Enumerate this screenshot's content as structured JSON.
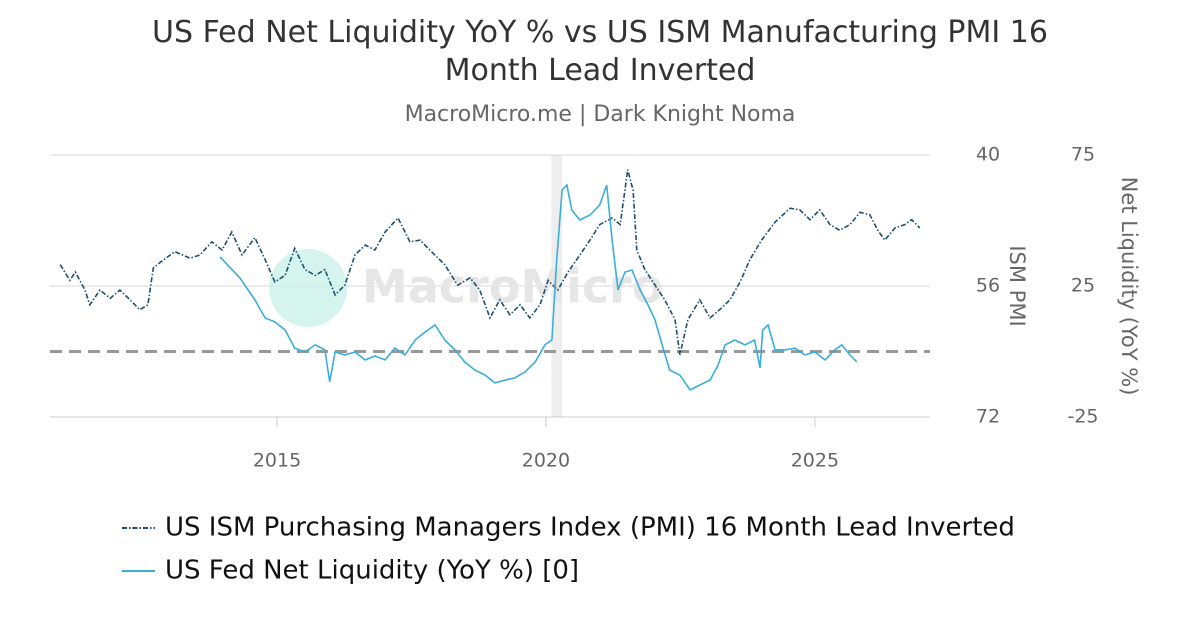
{
  "chart_data": {
    "type": "line",
    "title": "US Fed Net Liquidity YoY % vs US ISM Manufacturing PMI 16 Month Lead Inverted",
    "subtitle": "MacroMicro.me | Dark Knight Noma",
    "watermark": "MacroMicro",
    "y_label": "ISM PMI",
    "y2_label": "Net Liquidity (YoY %)",
    "xlim": [
      2010.78,
      2027.14
    ],
    "xticks": [
      2015,
      2020,
      2025
    ],
    "ylim": [
      72,
      40
    ],
    "yticks": [
      40,
      56,
      72
    ],
    "y2lim": [
      -25,
      75
    ],
    "y2ticks": [
      -25,
      25,
      75
    ],
    "grid": true,
    "reference_line": {
      "axis": "y2",
      "value": 0,
      "color": "#999999"
    },
    "shaded_regions": [
      {
        "from": 2020.1,
        "to": 2020.3,
        "color": "#eeeeee"
      }
    ],
    "legend": "bottom-left",
    "series": [
      {
        "name": "US ISM Purchasing Managers Index (PMI) 16 Month Lead Inverted",
        "color": "#1d4e6e",
        "dash": "dashdot",
        "axis": "y",
        "x": [
          2010.97,
          2011.15,
          2011.25,
          2011.43,
          2011.52,
          2011.71,
          2011.9,
          2012.08,
          2012.27,
          2012.45,
          2012.6,
          2012.7,
          2012.83,
          2013.1,
          2013.38,
          2013.57,
          2013.79,
          2013.98,
          2014.16,
          2014.35,
          2014.59,
          2014.78,
          2014.96,
          2015.15,
          2015.33,
          2015.52,
          2015.71,
          2015.89,
          2016.08,
          2016.26,
          2016.45,
          2016.64,
          2016.82,
          2017.01,
          2017.25,
          2017.47,
          2017.66,
          2017.84,
          2018.12,
          2018.36,
          2018.59,
          2018.77,
          2018.96,
          2019.14,
          2019.33,
          2019.52,
          2019.7,
          2019.89,
          2020.04,
          2020.22,
          2020.41,
          2020.59,
          2020.82,
          2021.0,
          2021.23,
          2021.38,
          2021.52,
          2021.62,
          2021.69,
          2021.84,
          2022.03,
          2022.21,
          2022.4,
          2022.49,
          2022.64,
          2022.86,
          2023.05,
          2023.23,
          2023.42,
          2023.61,
          2023.79,
          2024.01,
          2024.26,
          2024.54,
          2024.72,
          2024.91,
          2025.09,
          2025.28,
          2025.46,
          2025.65,
          2025.84,
          2026.02,
          2026.17,
          2026.3,
          2026.49,
          2026.67,
          2026.8,
          2026.95
        ],
        "values": [
          53.4,
          55.3,
          54.3,
          56.5,
          58.3,
          56.5,
          57.5,
          56.5,
          57.7,
          58.9,
          58.3,
          53.8,
          53.1,
          51.8,
          52.6,
          52.2,
          50.6,
          51.6,
          49.4,
          52.2,
          50.1,
          52.8,
          55.5,
          54.7,
          51.4,
          54.0,
          54.7,
          54.0,
          57.1,
          55.9,
          52.2,
          51.0,
          51.6,
          49.4,
          47.7,
          50.6,
          50.4,
          51.6,
          53.4,
          55.9,
          55.0,
          56.5,
          59.9,
          57.7,
          59.5,
          58.3,
          59.9,
          58.3,
          55.3,
          56.5,
          54.3,
          52.6,
          50.4,
          48.5,
          47.7,
          48.5,
          41.8,
          44.3,
          51.6,
          54.0,
          55.9,
          57.7,
          60.1,
          64.4,
          60.1,
          57.7,
          59.9,
          58.9,
          57.7,
          55.5,
          52.8,
          50.4,
          48.2,
          46.5,
          46.7,
          47.9,
          46.7,
          48.5,
          49.2,
          48.5,
          47.0,
          47.3,
          49.2,
          50.4,
          48.9,
          48.5,
          47.9,
          48.9
        ]
      },
      {
        "name": "US Fed Net Liquidity (YoY %) [0]",
        "color": "#3aaed6",
        "dash": "solid",
        "axis": "y2",
        "x": [
          2013.94,
          2014.31,
          2014.59,
          2014.78,
          2014.96,
          2015.15,
          2015.33,
          2015.52,
          2015.71,
          2015.89,
          2015.98,
          2016.08,
          2016.26,
          2016.45,
          2016.64,
          2016.82,
          2017.01,
          2017.19,
          2017.38,
          2017.57,
          2017.75,
          2017.94,
          2018.12,
          2018.31,
          2018.49,
          2018.68,
          2018.87,
          2019.05,
          2019.24,
          2019.42,
          2019.61,
          2019.8,
          2019.98,
          2020.11,
          2020.2,
          2020.3,
          2020.39,
          2020.48,
          2020.63,
          2020.82,
          2021.0,
          2021.13,
          2021.23,
          2021.34,
          2021.47,
          2021.6,
          2021.75,
          2021.9,
          2022.03,
          2022.16,
          2022.3,
          2022.49,
          2022.68,
          2022.86,
          2023.05,
          2023.2,
          2023.33,
          2023.51,
          2023.7,
          2023.88,
          2023.98,
          2024.03,
          2024.13,
          2024.26,
          2024.44,
          2024.63,
          2024.81,
          2025.0,
          2025.19,
          2025.37,
          2025.5,
          2025.65,
          2025.78
        ],
        "values": [
          36.1,
          28.1,
          19.7,
          12.8,
          11.3,
          8.2,
          1.3,
          -0.2,
          2.5,
          0.6,
          -11.6,
          -0.2,
          -1.3,
          -0.2,
          -3.2,
          -1.7,
          -3.2,
          1.3,
          -1.3,
          4.4,
          7.4,
          10.1,
          4.4,
          0.6,
          -4.0,
          -7.1,
          -9.0,
          -12.0,
          -10.9,
          -10.1,
          -7.8,
          -4.0,
          2.5,
          4.4,
          34.9,
          61.6,
          63.5,
          54.0,
          50.2,
          52.1,
          55.9,
          63.5,
          42.6,
          23.5,
          30.3,
          31.1,
          23.5,
          17.7,
          12.0,
          2.5,
          -7.1,
          -9.0,
          -14.7,
          -12.8,
          -10.9,
          -5.2,
          2.5,
          4.4,
          2.5,
          4.4,
          -6.3,
          8.2,
          10.1,
          0.6,
          0.6,
          1.3,
          -1.3,
          -0.2,
          -3.2,
          0.6,
          2.5,
          -1.3,
          -4.0
        ]
      }
    ]
  }
}
